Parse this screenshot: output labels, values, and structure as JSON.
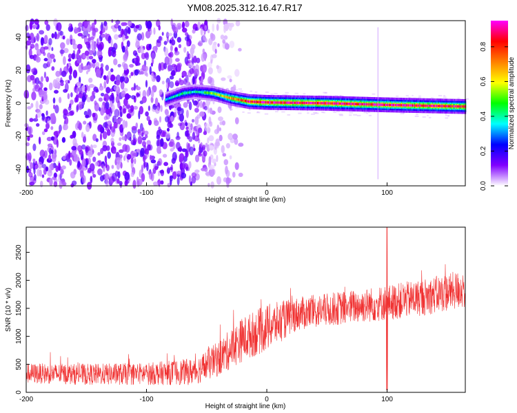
{
  "title": "YM08.2025.312.16.47.R17",
  "chart_data": [
    {
      "type": "heatmap",
      "xlabel": "Height of straight line (km)",
      "ylabel": "Frequency (Hz)",
      "xlim": [
        -200,
        165
      ],
      "ylim": [
        -50,
        50
      ],
      "xticks": [
        -200,
        -100,
        0,
        100
      ],
      "yticks": [
        -40,
        -20,
        0,
        20,
        40
      ],
      "colorbar": {
        "label": "Normalized spectral amplitude",
        "ticks": [
          0.0,
          0.2,
          0.4,
          0.6,
          0.8
        ],
        "range": [
          0,
          0.95
        ],
        "colors": [
          "#ffffff",
          "#8000ff",
          "#0000ff",
          "#00ffff",
          "#00ff00",
          "#ffff00",
          "#ff8000",
          "#ff0000",
          "#ff00ff"
        ]
      },
      "noise_region_x": [
        -200,
        -50
      ],
      "signal_ridge": [
        {
          "x": -85,
          "f": 2,
          "amp": 0.35
        },
        {
          "x": -70,
          "f": 6,
          "amp": 0.45
        },
        {
          "x": -60,
          "f": 7,
          "amp": 0.4
        },
        {
          "x": -45,
          "f": 6,
          "amp": 0.55
        },
        {
          "x": -30,
          "f": 3,
          "amp": 0.7
        },
        {
          "x": -15,
          "f": 1,
          "amp": 0.9
        },
        {
          "x": 0,
          "f": 0.5,
          "amp": 0.95
        },
        {
          "x": 50,
          "f": 0,
          "amp": 0.95
        },
        {
          "x": 100,
          "f": -1,
          "amp": 0.95
        },
        {
          "x": 165,
          "f": -2,
          "amp": 0.9
        }
      ]
    },
    {
      "type": "line",
      "xlabel": "Height of straight line (km)",
      "ylabel": "SNR (10 * v/v)",
      "xlim": [
        -200,
        165
      ],
      "ylim": [
        0,
        2950
      ],
      "xticks": [
        -200,
        -100,
        0,
        100
      ],
      "yticks": [
        0,
        500,
        1000,
        1500,
        2000,
        2500
      ],
      "color": "#f03030",
      "envelope": [
        {
          "x": -200,
          "mean": 340,
          "spread": 180
        },
        {
          "x": -150,
          "mean": 320,
          "spread": 190
        },
        {
          "x": -100,
          "mean": 330,
          "spread": 200
        },
        {
          "x": -60,
          "mean": 370,
          "spread": 240
        },
        {
          "x": -40,
          "mean": 600,
          "spread": 320
        },
        {
          "x": -20,
          "mean": 950,
          "spread": 400
        },
        {
          "x": 0,
          "mean": 1150,
          "spread": 420
        },
        {
          "x": 25,
          "mean": 1400,
          "spread": 300
        },
        {
          "x": 60,
          "mean": 1500,
          "spread": 300
        },
        {
          "x": 100,
          "mean": 1600,
          "spread": 320
        },
        {
          "x": 130,
          "mean": 1700,
          "spread": 330
        },
        {
          "x": 165,
          "mean": 1850,
          "spread": 350
        }
      ],
      "spike": {
        "x": 100,
        "peak": 2950,
        "min": 40
      }
    }
  ]
}
